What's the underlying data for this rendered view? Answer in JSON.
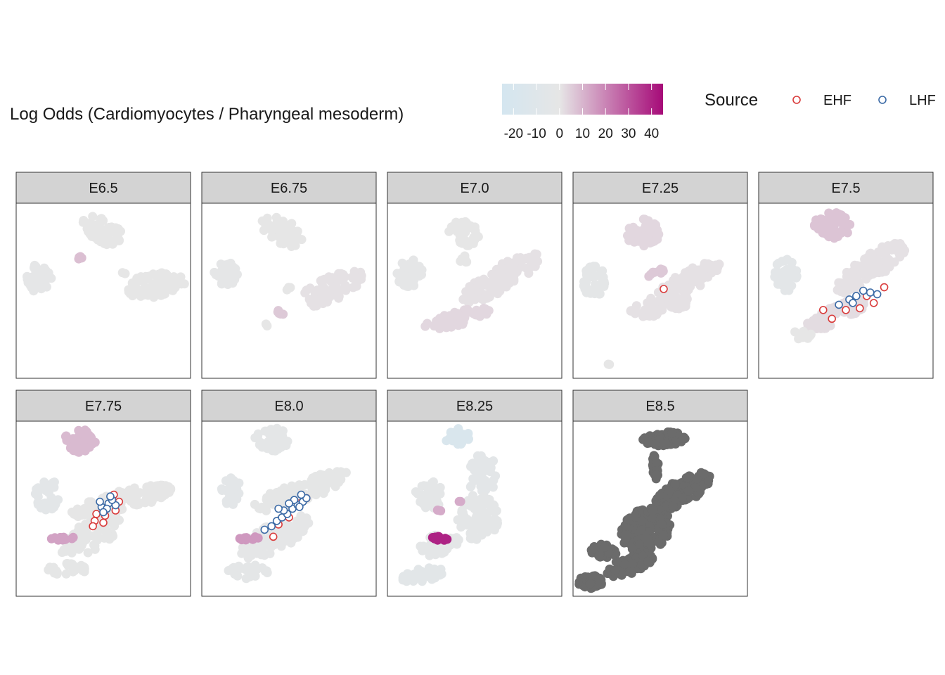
{
  "chart_data": {
    "type": "scatter",
    "facet_variable": "stage",
    "colorbar": {
      "title": "Log Odds (Cardiomyocytes / Pharyngeal mesoderm)",
      "range": [
        -25,
        45
      ],
      "ticks": [
        -20,
        -10,
        0,
        10,
        20,
        30,
        40
      ],
      "tick_labels": [
        "-20",
        "-10",
        "0",
        "10",
        "20",
        "30",
        "40"
      ],
      "colors": [
        "#d4e6f0",
        "#e6e6e6",
        "#a60a78"
      ],
      "color_stops": [
        -25,
        0,
        45
      ]
    },
    "shape_legend": {
      "title": "Source",
      "entries": [
        {
          "label": "EHF",
          "color": "#d93b3b"
        },
        {
          "label": "LHF",
          "color": "#3b6aa6"
        }
      ]
    },
    "na_color": "#6b6b6b",
    "panels": [
      {
        "label": "E6.5",
        "clusters": [
          {
            "cx": 0.5,
            "cy": 0.16,
            "rx": 0.13,
            "ry": 0.07,
            "angle": 30,
            "n": 55,
            "value": 0
          },
          {
            "cx": 0.13,
            "cy": 0.43,
            "rx": 0.08,
            "ry": 0.08,
            "angle": 0,
            "n": 40,
            "value": -2
          },
          {
            "cx": 0.8,
            "cy": 0.47,
            "rx": 0.17,
            "ry": 0.07,
            "angle": -8,
            "n": 80,
            "value": 0
          },
          {
            "cx": 0.36,
            "cy": 0.31,
            "rx": 0.02,
            "ry": 0.01,
            "angle": 0,
            "n": 4,
            "value": 8
          },
          {
            "cx": 0.62,
            "cy": 0.4,
            "rx": 0.015,
            "ry": 0.01,
            "angle": 0,
            "n": 2,
            "value": 0
          }
        ],
        "ehf": [],
        "lhf": []
      },
      {
        "label": "E6.75",
        "clusters": [
          {
            "cx": 0.46,
            "cy": 0.16,
            "rx": 0.13,
            "ry": 0.07,
            "angle": 30,
            "n": 50,
            "value": 0
          },
          {
            "cx": 0.14,
            "cy": 0.4,
            "rx": 0.07,
            "ry": 0.07,
            "angle": 0,
            "n": 35,
            "value": -2
          },
          {
            "cx": 0.74,
            "cy": 0.49,
            "rx": 0.2,
            "ry": 0.07,
            "angle": -25,
            "n": 70,
            "value": 1
          },
          {
            "cx": 0.46,
            "cy": 0.62,
            "rx": 0.03,
            "ry": 0.015,
            "angle": 0,
            "n": 6,
            "value": 6
          },
          {
            "cx": 0.37,
            "cy": 0.7,
            "rx": 0.01,
            "ry": 0.01,
            "angle": 0,
            "n": 2,
            "value": 0
          },
          {
            "cx": 0.5,
            "cy": 0.49,
            "rx": 0.015,
            "ry": 0.01,
            "angle": 0,
            "n": 3,
            "value": 0
          }
        ],
        "ehf": [],
        "lhf": []
      },
      {
        "label": "E7.0",
        "clusters": [
          {
            "cx": 0.43,
            "cy": 0.17,
            "rx": 0.1,
            "ry": 0.08,
            "angle": 10,
            "n": 45,
            "value": 0
          },
          {
            "cx": 0.13,
            "cy": 0.4,
            "rx": 0.08,
            "ry": 0.08,
            "angle": 0,
            "n": 40,
            "value": -2
          },
          {
            "cx": 0.65,
            "cy": 0.43,
            "rx": 0.26,
            "ry": 0.07,
            "angle": -30,
            "n": 120,
            "value": 1
          },
          {
            "cx": 0.4,
            "cy": 0.66,
            "rx": 0.2,
            "ry": 0.04,
            "angle": -15,
            "n": 60,
            "value": 3
          },
          {
            "cx": 0.44,
            "cy": 0.32,
            "rx": 0.03,
            "ry": 0.02,
            "angle": 0,
            "n": 6,
            "value": 0
          }
        ],
        "ehf": [],
        "lhf": []
      },
      {
        "label": "E7.25",
        "clusters": [
          {
            "cx": 0.4,
            "cy": 0.17,
            "rx": 0.1,
            "ry": 0.08,
            "angle": 10,
            "n": 45,
            "value": 3
          },
          {
            "cx": 0.12,
            "cy": 0.44,
            "rx": 0.07,
            "ry": 0.09,
            "angle": 0,
            "n": 40,
            "value": -3
          },
          {
            "cx": 0.64,
            "cy": 0.46,
            "rx": 0.23,
            "ry": 0.06,
            "angle": -30,
            "n": 100,
            "value": 1
          },
          {
            "cx": 0.5,
            "cy": 0.59,
            "rx": 0.18,
            "ry": 0.05,
            "angle": -12,
            "n": 60,
            "value": 1
          },
          {
            "cx": 0.48,
            "cy": 0.4,
            "rx": 0.05,
            "ry": 0.02,
            "angle": -20,
            "n": 10,
            "value": 6
          },
          {
            "cx": 0.2,
            "cy": 0.92,
            "rx": 0.01,
            "ry": 0.01,
            "angle": 0,
            "n": 2,
            "value": 0
          }
        ],
        "ehf": [
          [
            0.52,
            0.49
          ]
        ],
        "lhf": []
      },
      {
        "label": "E7.5",
        "clusters": [
          {
            "cx": 0.42,
            "cy": 0.13,
            "rx": 0.11,
            "ry": 0.08,
            "angle": 10,
            "n": 55,
            "value": 7
          },
          {
            "cx": 0.16,
            "cy": 0.41,
            "rx": 0.08,
            "ry": 0.09,
            "angle": 0,
            "n": 40,
            "value": -4
          },
          {
            "cx": 0.64,
            "cy": 0.37,
            "rx": 0.25,
            "ry": 0.07,
            "angle": -35,
            "n": 120,
            "value": 1
          },
          {
            "cx": 0.44,
            "cy": 0.64,
            "rx": 0.2,
            "ry": 0.05,
            "angle": -25,
            "n": 70,
            "value": 2
          },
          {
            "cx": 0.25,
            "cy": 0.75,
            "rx": 0.05,
            "ry": 0.03,
            "angle": 0,
            "n": 12,
            "value": 0
          }
        ],
        "ehf": [
          [
            0.58,
            0.6
          ],
          [
            0.72,
            0.48
          ],
          [
            0.5,
            0.61
          ],
          [
            0.62,
            0.53
          ],
          [
            0.66,
            0.57
          ],
          [
            0.37,
            0.61
          ],
          [
            0.42,
            0.66
          ]
        ],
        "lhf": [
          [
            0.46,
            0.58
          ],
          [
            0.52,
            0.55
          ],
          [
            0.56,
            0.53
          ],
          [
            0.6,
            0.5
          ],
          [
            0.64,
            0.51
          ],
          [
            0.54,
            0.57
          ],
          [
            0.68,
            0.52
          ]
        ]
      },
      {
        "label": "E7.75",
        "clusters": [
          {
            "cx": 0.37,
            "cy": 0.11,
            "rx": 0.09,
            "ry": 0.07,
            "angle": 15,
            "n": 45,
            "value": 9
          },
          {
            "cx": 0.18,
            "cy": 0.42,
            "rx": 0.07,
            "ry": 0.09,
            "angle": 0,
            "n": 35,
            "value": -4
          },
          {
            "cx": 0.6,
            "cy": 0.46,
            "rx": 0.3,
            "ry": 0.06,
            "angle": -15,
            "n": 120,
            "value": 0
          },
          {
            "cx": 0.42,
            "cy": 0.66,
            "rx": 0.2,
            "ry": 0.08,
            "angle": -30,
            "n": 90,
            "value": -1
          },
          {
            "cx": 0.3,
            "cy": 0.84,
            "rx": 0.12,
            "ry": 0.04,
            "angle": 0,
            "n": 30,
            "value": -1
          },
          {
            "cx": 0.27,
            "cy": 0.67,
            "rx": 0.07,
            "ry": 0.012,
            "angle": 0,
            "n": 12,
            "value": 14
          }
        ],
        "ehf": [
          [
            0.56,
            0.42
          ],
          [
            0.59,
            0.46
          ],
          [
            0.51,
            0.54
          ],
          [
            0.45,
            0.57
          ],
          [
            0.5,
            0.58
          ],
          [
            0.44,
            0.6
          ],
          [
            0.57,
            0.51
          ],
          [
            0.46,
            0.53
          ]
        ],
        "lhf": [
          [
            0.49,
            0.49
          ],
          [
            0.53,
            0.47
          ],
          [
            0.57,
            0.48
          ],
          [
            0.52,
            0.5
          ],
          [
            0.55,
            0.45
          ],
          [
            0.5,
            0.52
          ],
          [
            0.54,
            0.43
          ],
          [
            0.48,
            0.46
          ]
        ]
      },
      {
        "label": "E8.0",
        "clusters": [
          {
            "cx": 0.4,
            "cy": 0.1,
            "rx": 0.1,
            "ry": 0.07,
            "angle": 10,
            "n": 45,
            "value": -3
          },
          {
            "cx": 0.17,
            "cy": 0.4,
            "rx": 0.06,
            "ry": 0.08,
            "angle": 0,
            "n": 30,
            "value": -4
          },
          {
            "cx": 0.57,
            "cy": 0.4,
            "rx": 0.3,
            "ry": 0.06,
            "angle": -20,
            "n": 120,
            "value": -1
          },
          {
            "cx": 0.42,
            "cy": 0.66,
            "rx": 0.22,
            "ry": 0.08,
            "angle": -30,
            "n": 100,
            "value": -2
          },
          {
            "cx": 0.28,
            "cy": 0.86,
            "rx": 0.13,
            "ry": 0.04,
            "angle": 0,
            "n": 30,
            "value": -3
          },
          {
            "cx": 0.27,
            "cy": 0.67,
            "rx": 0.06,
            "ry": 0.012,
            "angle": 0,
            "n": 12,
            "value": 16
          }
        ],
        "ehf": [
          [
            0.6,
            0.44
          ],
          [
            0.56,
            0.47
          ],
          [
            0.5,
            0.55
          ],
          [
            0.44,
            0.59
          ],
          [
            0.41,
            0.66
          ]
        ],
        "lhf": [
          [
            0.36,
            0.62
          ],
          [
            0.4,
            0.6
          ],
          [
            0.43,
            0.57
          ],
          [
            0.46,
            0.55
          ],
          [
            0.49,
            0.53
          ],
          [
            0.52,
            0.5
          ],
          [
            0.55,
            0.48
          ],
          [
            0.58,
            0.46
          ],
          [
            0.6,
            0.44
          ],
          [
            0.47,
            0.51
          ],
          [
            0.53,
            0.45
          ],
          [
            0.57,
            0.42
          ],
          [
            0.44,
            0.5
          ],
          [
            0.5,
            0.47
          ],
          [
            0.56,
            0.49
          ]
        ]
      },
      {
        "label": "E8.25",
        "clusters": [
          {
            "cx": 0.4,
            "cy": 0.09,
            "rx": 0.07,
            "ry": 0.05,
            "angle": 0,
            "n": 30,
            "value": -18
          },
          {
            "cx": 0.55,
            "cy": 0.3,
            "rx": 0.09,
            "ry": 0.12,
            "angle": 10,
            "n": 50,
            "value": -4
          },
          {
            "cx": 0.24,
            "cy": 0.42,
            "rx": 0.08,
            "ry": 0.08,
            "angle": 0,
            "n": 35,
            "value": -3
          },
          {
            "cx": 0.52,
            "cy": 0.55,
            "rx": 0.12,
            "ry": 0.13,
            "angle": 0,
            "n": 80,
            "value": -3
          },
          {
            "cx": 0.3,
            "cy": 0.7,
            "rx": 0.12,
            "ry": 0.06,
            "angle": -20,
            "n": 40,
            "value": -3
          },
          {
            "cx": 0.2,
            "cy": 0.88,
            "rx": 0.12,
            "ry": 0.04,
            "angle": -10,
            "n": 30,
            "value": -5
          },
          {
            "cx": 0.3,
            "cy": 0.67,
            "rx": 0.05,
            "ry": 0.012,
            "angle": 0,
            "n": 14,
            "value": 40
          },
          {
            "cx": 0.3,
            "cy": 0.51,
            "rx": 0.015,
            "ry": 0.01,
            "angle": 0,
            "n": 3,
            "value": 12
          },
          {
            "cx": 0.41,
            "cy": 0.46,
            "rx": 0.01,
            "ry": 0.01,
            "angle": 0,
            "n": 2,
            "value": 12
          }
        ],
        "ehf": [],
        "lhf": []
      },
      {
        "label": "E8.5",
        "na": true,
        "clusters": [
          {
            "cx": 0.53,
            "cy": 0.1,
            "rx": 0.13,
            "ry": 0.04,
            "angle": -5,
            "n": 80,
            "value": 0
          },
          {
            "cx": 0.47,
            "cy": 0.27,
            "rx": 0.02,
            "ry": 0.08,
            "angle": 0,
            "n": 25,
            "value": 0
          },
          {
            "cx": 0.63,
            "cy": 0.4,
            "rx": 0.18,
            "ry": 0.07,
            "angle": -30,
            "n": 120,
            "value": 0
          },
          {
            "cx": 0.42,
            "cy": 0.62,
            "rx": 0.15,
            "ry": 0.12,
            "angle": -20,
            "n": 150,
            "value": 0
          },
          {
            "cx": 0.18,
            "cy": 0.74,
            "rx": 0.08,
            "ry": 0.04,
            "angle": 0,
            "n": 30,
            "value": 0
          },
          {
            "cx": 0.33,
            "cy": 0.82,
            "rx": 0.15,
            "ry": 0.05,
            "angle": -20,
            "n": 60,
            "value": 0
          },
          {
            "cx": 0.1,
            "cy": 0.92,
            "rx": 0.07,
            "ry": 0.04,
            "angle": 0,
            "n": 50,
            "value": 0
          }
        ],
        "ehf": [],
        "lhf": []
      }
    ]
  }
}
